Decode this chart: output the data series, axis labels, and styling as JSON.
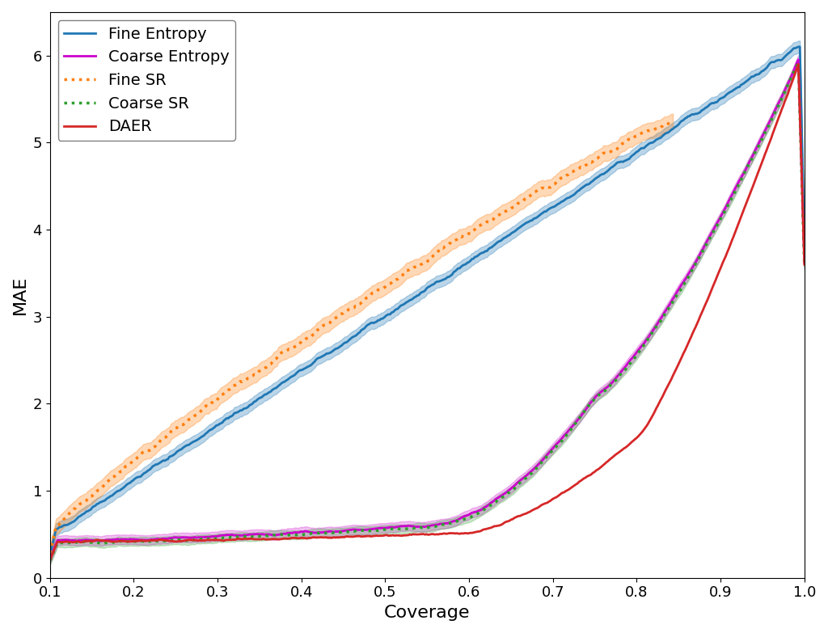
{
  "title": "",
  "xlabel": "Coverage",
  "ylabel": "MAE",
  "xlim": [
    0.1,
    1.0
  ],
  "ylim": [
    0.0,
    6.5
  ],
  "xticks": [
    0.1,
    0.2,
    0.3,
    0.4,
    0.5,
    0.6,
    0.7,
    0.8,
    0.9,
    1.0
  ],
  "yticks": [
    0,
    1,
    2,
    3,
    4,
    5,
    6
  ],
  "series": {
    "fine_entropy": {
      "color": "#1f77b4",
      "label": "Fine Entropy",
      "linestyle": "-",
      "linewidth": 2.0,
      "band_alpha": 0.3
    },
    "coarse_entropy": {
      "color": "#cc00cc",
      "label": "Coarse Entropy",
      "linestyle": "-",
      "linewidth": 2.0,
      "band_alpha": 0.25
    },
    "fine_sr": {
      "color": "#ff7f0e",
      "label": "Fine SR",
      "linestyle": ":",
      "linewidth": 2.5,
      "band_alpha": 0.3
    },
    "coarse_sr": {
      "color": "#2ca02c",
      "label": "Coarse SR",
      "linestyle": ":",
      "linewidth": 2.5,
      "band_alpha": 0.25
    },
    "daer": {
      "color": "#d62728",
      "label": "DAER",
      "linestyle": "-",
      "linewidth": 2.0,
      "band_alpha": 0.0
    }
  },
  "legend_loc": "upper left",
  "legend_fontsize": 14,
  "axis_label_fontsize": 16,
  "tick_fontsize": 13
}
